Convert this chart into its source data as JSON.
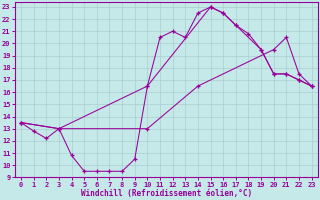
{
  "xlabel": "Windchill (Refroidissement éolien,°C)",
  "bg_color": "#c5e8e8",
  "grid_color": "#aacfcf",
  "line_color": "#990099",
  "xlim": [
    -0.5,
    23.5
  ],
  "ylim": [
    9,
    23.4
  ],
  "xticks": [
    0,
    1,
    2,
    3,
    4,
    5,
    6,
    7,
    8,
    9,
    10,
    11,
    12,
    13,
    14,
    15,
    16,
    17,
    18,
    19,
    20,
    21,
    22,
    23
  ],
  "yticks": [
    9,
    10,
    11,
    12,
    13,
    14,
    15,
    16,
    17,
    18,
    19,
    20,
    21,
    22,
    23
  ],
  "line1_x": [
    0,
    1,
    2,
    3,
    4,
    5,
    6,
    7,
    8,
    9,
    10,
    11,
    12,
    13,
    14,
    15,
    16,
    17,
    18,
    19,
    20,
    21,
    22,
    23
  ],
  "line1_y": [
    13.5,
    12.8,
    12.2,
    13.0,
    10.8,
    9.5,
    9.5,
    9.5,
    9.5,
    10.5,
    16.5,
    20.5,
    21.0,
    20.5,
    22.5,
    23.0,
    22.5,
    21.5,
    20.8,
    19.5,
    17.5,
    17.5,
    17.0,
    16.5
  ],
  "line2_x": [
    0,
    3,
    10,
    15,
    16,
    17,
    19,
    20,
    21,
    22,
    23
  ],
  "line2_y": [
    13.5,
    13.0,
    16.5,
    23.0,
    22.5,
    21.5,
    19.5,
    17.5,
    17.5,
    17.0,
    16.5
  ],
  "line3_x": [
    0,
    3,
    10,
    14,
    20,
    21,
    22,
    23
  ],
  "line3_y": [
    13.5,
    13.0,
    13.0,
    16.5,
    19.5,
    20.5,
    17.5,
    16.5
  ]
}
